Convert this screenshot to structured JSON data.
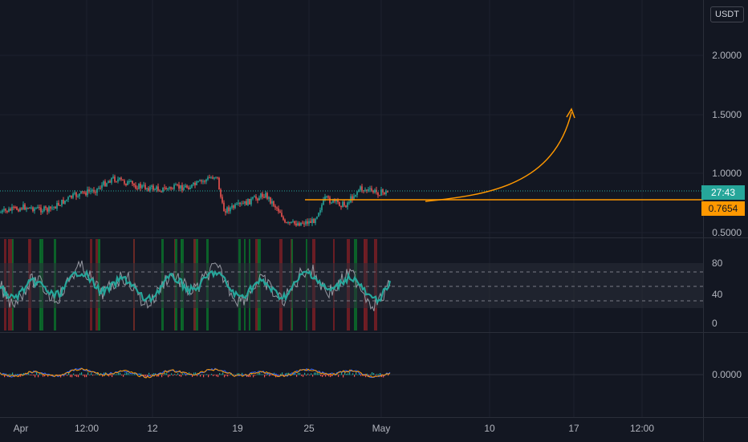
{
  "axis": {
    "currency": "USDT",
    "price_labels": [
      "2.0000",
      "1.5000",
      "1.0000",
      "0.5000"
    ],
    "current_time_tag": "27:43",
    "current_price_tag": "0.7654",
    "osc_labels": [
      "80",
      "40",
      "0"
    ],
    "macd_label": "0.0000"
  },
  "time_axis": [
    "Apr",
    "12:00",
    "12",
    "19",
    "25",
    "May",
    "10",
    "17",
    "12:00"
  ],
  "colors": {
    "background": "#131722",
    "up": "#26a69a",
    "down": "#ef5350",
    "highlight": "#ff9800",
    "grid": "#1e222d",
    "bull_band": "#0b6e2a",
    "bear_band": "#7a1f24"
  }
}
